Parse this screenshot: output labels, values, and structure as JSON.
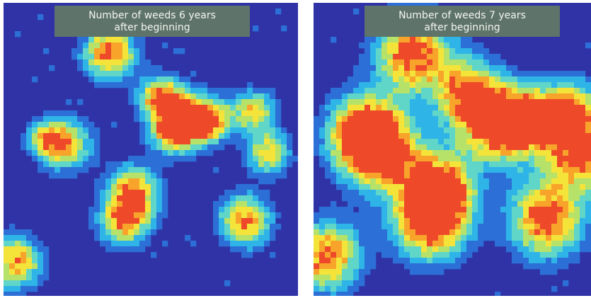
{
  "chart_data": [
    {
      "type": "heatmap",
      "title_line1": "Number of weeds 6 years",
      "title_line2": "after beginning",
      "grid": false,
      "legend": "none",
      "palette": [
        "#3033a6",
        "#2c6fd6",
        "#2fb4e8",
        "#5fd6c8",
        "#b6e26a",
        "#f4e43a",
        "#f8a42a",
        "#ee4a2a"
      ],
      "clusters": [
        {
          "x": 0.36,
          "y": 0.17,
          "intensity": 0.95,
          "spread": 0.06
        },
        {
          "x": 0.53,
          "y": 0.32,
          "intensity": 0.85,
          "spread": 0.05
        },
        {
          "x": 0.62,
          "y": 0.39,
          "intensity": 0.9,
          "spread": 0.06
        },
        {
          "x": 0.7,
          "y": 0.4,
          "intensity": 0.8,
          "spread": 0.05
        },
        {
          "x": 0.57,
          "y": 0.44,
          "intensity": 0.75,
          "spread": 0.05
        },
        {
          "x": 0.85,
          "y": 0.37,
          "intensity": 0.7,
          "spread": 0.05
        },
        {
          "x": 0.9,
          "y": 0.51,
          "intensity": 0.7,
          "spread": 0.05
        },
        {
          "x": 0.21,
          "y": 0.48,
          "intensity": 0.8,
          "spread": 0.06
        },
        {
          "x": 0.14,
          "y": 0.46,
          "intensity": 0.6,
          "spread": 0.04
        },
        {
          "x": 0.44,
          "y": 0.64,
          "intensity": 0.85,
          "spread": 0.06
        },
        {
          "x": 0.41,
          "y": 0.74,
          "intensity": 0.8,
          "spread": 0.06
        },
        {
          "x": 0.82,
          "y": 0.74,
          "intensity": 0.85,
          "spread": 0.06
        },
        {
          "x": 0.04,
          "y": 0.88,
          "intensity": 0.85,
          "spread": 0.06
        }
      ]
    },
    {
      "type": "heatmap",
      "title_line1": "Number of weeds 7 years",
      "title_line2": "after beginning",
      "grid": false,
      "legend": "none",
      "palette": [
        "#3033a6",
        "#2c6fd6",
        "#2fb4e8",
        "#5fd6c8",
        "#b6e26a",
        "#f4e43a",
        "#f8a42a",
        "#ee4a2a"
      ],
      "clusters": [
        {
          "x": 0.36,
          "y": 0.17,
          "intensity": 1.0,
          "spread": 0.09
        },
        {
          "x": 0.56,
          "y": 0.31,
          "intensity": 0.95,
          "spread": 0.08
        },
        {
          "x": 0.66,
          "y": 0.42,
          "intensity": 1.0,
          "spread": 0.08
        },
        {
          "x": 0.78,
          "y": 0.4,
          "intensity": 0.95,
          "spread": 0.08
        },
        {
          "x": 0.93,
          "y": 0.37,
          "intensity": 0.85,
          "spread": 0.07
        },
        {
          "x": 0.96,
          "y": 0.52,
          "intensity": 0.9,
          "spread": 0.08
        },
        {
          "x": 0.18,
          "y": 0.44,
          "intensity": 0.9,
          "spread": 0.09
        },
        {
          "x": 0.24,
          "y": 0.5,
          "intensity": 1.0,
          "spread": 0.09
        },
        {
          "x": 0.45,
          "y": 0.63,
          "intensity": 1.0,
          "spread": 0.09
        },
        {
          "x": 0.42,
          "y": 0.74,
          "intensity": 1.0,
          "spread": 0.09
        },
        {
          "x": 0.84,
          "y": 0.73,
          "intensity": 1.0,
          "spread": 0.09
        },
        {
          "x": 0.05,
          "y": 0.86,
          "intensity": 0.95,
          "spread": 0.08
        }
      ]
    }
  ]
}
